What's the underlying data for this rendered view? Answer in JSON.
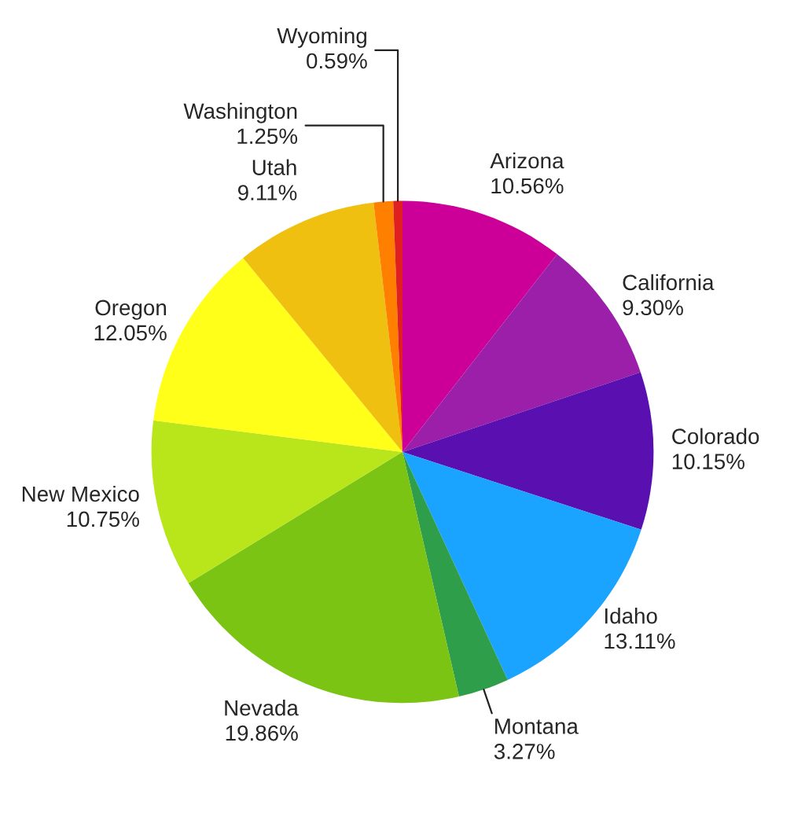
{
  "chart_data": {
    "type": "pie",
    "categories": [
      "Arizona",
      "California",
      "Colorado",
      "Idaho",
      "Montana",
      "Nevada",
      "New Mexico",
      "Oregon",
      "Utah",
      "Washington",
      "Wyoming"
    ],
    "values": [
      10.56,
      9.3,
      10.15,
      13.11,
      3.27,
      19.86,
      10.75,
      12.05,
      9.11,
      1.25,
      0.59
    ],
    "value_labels": [
      "10.56%",
      "9.30%",
      "10.15%",
      "13.11%",
      "3.27%",
      "19.86%",
      "10.75%",
      "12.05%",
      "9.11%",
      "1.25%",
      "0.59%"
    ],
    "colors": [
      "#cc0099",
      "#9b1fa8",
      "#5a0fb0",
      "#1aa3ff",
      "#2e9e4a",
      "#7cc414",
      "#b8e61a",
      "#ffff1a",
      "#f0c010",
      "#ff7f00",
      "#e02020"
    ]
  }
}
